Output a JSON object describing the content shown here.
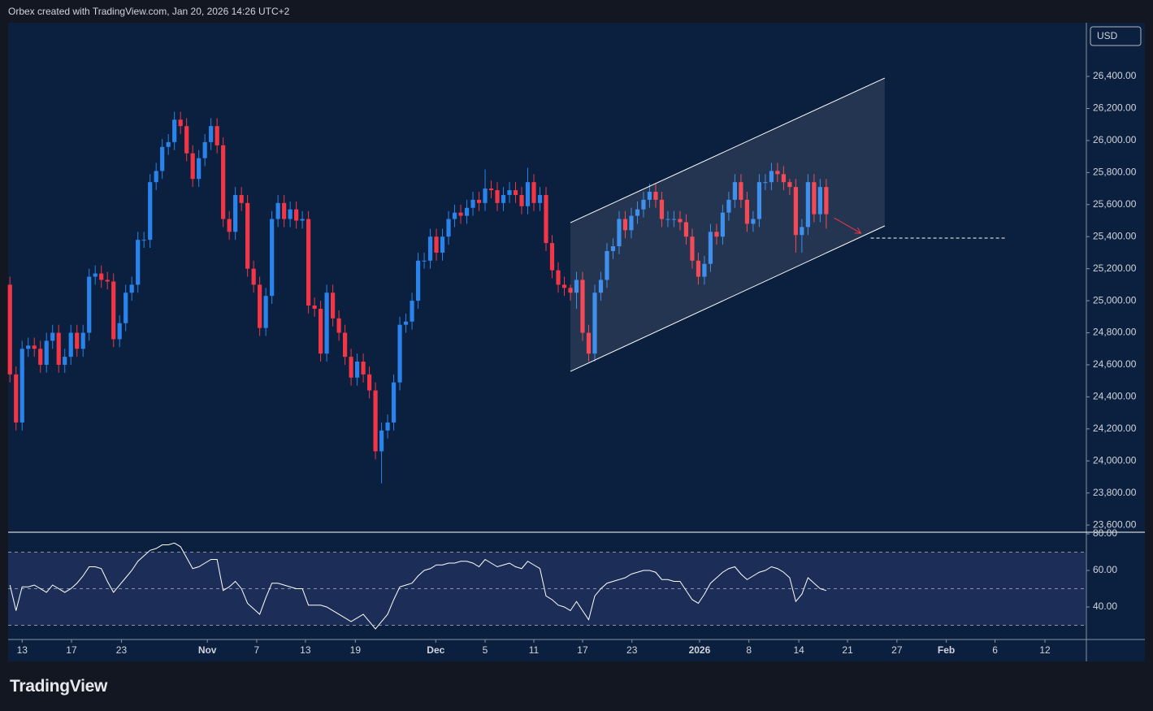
{
  "header": "Orbex created with TradingView.com, Jan 20, 2026 14:26 UTC+2",
  "logo": "TradingView",
  "currency": "USD",
  "chart_data": [
    {
      "type": "candlestick",
      "up_color": "#2a83ea",
      "down_color": "#f23645",
      "xlim": [
        -0.3,
        176.7
      ],
      "ylim": [
        23555,
        26735
      ],
      "xticks": [
        {
          "value": 2,
          "label": "13"
        },
        {
          "value": 10.1,
          "label": "17"
        },
        {
          "value": 18.3,
          "label": "23"
        },
        {
          "value": 32.4,
          "label": "Nov"
        },
        {
          "value": 40.5,
          "label": "7"
        },
        {
          "value": 48.5,
          "label": "13"
        },
        {
          "value": 56.7,
          "label": "19"
        },
        {
          "value": 69.9,
          "label": "Dec"
        },
        {
          "value": 78,
          "label": "5"
        },
        {
          "value": 86,
          "label": "11"
        },
        {
          "value": 94,
          "label": "17"
        },
        {
          "value": 102.1,
          "label": "23"
        },
        {
          "value": 113.2,
          "label": "2026"
        },
        {
          "value": 121.3,
          "label": "8"
        },
        {
          "value": 129.5,
          "label": "14"
        },
        {
          "value": 137.5,
          "label": "21"
        },
        {
          "value": 145.6,
          "label": "27"
        },
        {
          "value": 153.7,
          "label": "Feb"
        },
        {
          "value": 161.7,
          "label": "6"
        },
        {
          "value": 169.9,
          "label": "12"
        }
      ],
      "yticks": [
        {
          "value": 23600,
          "label": "23,600.00"
        },
        {
          "value": 23800,
          "label": "23,800.00"
        },
        {
          "value": 24000,
          "label": "24,000.00"
        },
        {
          "value": 24200,
          "label": "24,200.00"
        },
        {
          "value": 24400,
          "label": "24,400.00"
        },
        {
          "value": 24600,
          "label": "24,600.00"
        },
        {
          "value": 24800,
          "label": "24,800.00"
        },
        {
          "value": 25000,
          "label": "25,000.00"
        },
        {
          "value": 25200,
          "label": "25,200.00"
        },
        {
          "value": 25400,
          "label": "25,400.00"
        },
        {
          "value": 25600,
          "label": "25,600.00"
        },
        {
          "value": 25800,
          "label": "25,800.00"
        },
        {
          "value": 26000,
          "label": "26,000.00"
        },
        {
          "value": 26200,
          "label": "26,200.00"
        },
        {
          "value": 26400,
          "label": "26,400.00"
        }
      ],
      "open": [
        25100,
        24540,
        24240,
        24700,
        24720,
        24700,
        24600,
        24750,
        24800,
        24600,
        24650,
        24800,
        24700,
        24800,
        25150,
        25170,
        25130,
        25120,
        24760,
        24860,
        25050,
        25100,
        25380,
        25380,
        25740,
        25810,
        25960,
        25990,
        26130,
        26090,
        25920,
        25760,
        25890,
        25990,
        26090,
        25970,
        25510,
        25430,
        25660,
        25610,
        25200,
        25100,
        24830,
        25030,
        25510,
        25610,
        25510,
        25570,
        25500,
        25510,
        24970,
        24950,
        24670,
        25050,
        24890,
        24800,
        24650,
        24520,
        24620,
        24540,
        24440,
        24060,
        24190,
        24240,
        24490,
        24850,
        24870,
        25000,
        25250,
        25250,
        25400,
        25300,
        25400,
        25510,
        25550,
        25530,
        25580,
        25630,
        25610,
        25700,
        25690,
        25610,
        25660,
        25690,
        25660,
        25590,
        25740,
        25610,
        25660,
        25360,
        25190,
        25100,
        25080,
        25050,
        25130,
        24800,
        24670,
        25050,
        25130,
        25310,
        25340,
        25510,
        25440,
        25530,
        25570,
        25630,
        25680,
        25630,
        25510,
        25510,
        25510,
        25490,
        25400,
        25250,
        25150,
        25230,
        25430,
        25400,
        25550,
        25630,
        25740,
        25630,
        25480,
        25510,
        25740,
        25740,
        25810,
        25790,
        25740,
        25710,
        25410,
        25460,
        25740,
        25540,
        25710
      ],
      "high": [
        25150,
        24590,
        24750,
        24770,
        24770,
        24750,
        24800,
        24850,
        24850,
        24700,
        24850,
        24850,
        24850,
        25200,
        25220,
        25220,
        25180,
        25170,
        24910,
        25100,
        25150,
        25430,
        25430,
        25790,
        25860,
        26010,
        26040,
        26180,
        26180,
        26140,
        25970,
        25940,
        26040,
        26140,
        26140,
        26020,
        25560,
        25710,
        25710,
        25660,
        25250,
        25150,
        25080,
        25560,
        25660,
        25660,
        25620,
        25620,
        25560,
        25560,
        25020,
        25000,
        25100,
        25100,
        24940,
        24850,
        24700,
        24670,
        24670,
        24590,
        24490,
        24240,
        24290,
        24540,
        24900,
        24920,
        25050,
        25300,
        25300,
        25450,
        25450,
        25450,
        25560,
        25600,
        25600,
        25630,
        25680,
        25680,
        25820,
        25750,
        25740,
        25710,
        25740,
        25740,
        25710,
        25830,
        25790,
        25710,
        25710,
        25410,
        25240,
        25150,
        25100,
        25180,
        25180,
        24850,
        25100,
        25180,
        25360,
        25390,
        25560,
        25560,
        25580,
        25620,
        25680,
        25730,
        25730,
        25680,
        25560,
        25560,
        25560,
        25540,
        25450,
        25300,
        25280,
        25480,
        25480,
        25600,
        25680,
        25790,
        25790,
        25680,
        25560,
        25790,
        25790,
        25860,
        25860,
        25840,
        25760,
        25760,
        25510,
        25790,
        25790,
        25760,
        25760
      ],
      "low": [
        24490,
        24190,
        24190,
        24650,
        24650,
        24550,
        24550,
        24700,
        24550,
        24550,
        24600,
        24650,
        24650,
        24750,
        25100,
        25080,
        25070,
        24710,
        24710,
        24810,
        25000,
        25050,
        25330,
        25330,
        25690,
        25760,
        25910,
        25940,
        26040,
        25870,
        25710,
        25710,
        25840,
        25940,
        25920,
        25460,
        25380,
        25380,
        25560,
        25150,
        25050,
        24780,
        24780,
        24980,
        25460,
        25460,
        25460,
        25450,
        25450,
        24920,
        24900,
        24620,
        24620,
        24840,
        24750,
        24600,
        24470,
        24470,
        24490,
        24390,
        24010,
        23860,
        24140,
        24190,
        24440,
        24800,
        24820,
        24950,
        25200,
        25200,
        25250,
        25250,
        25350,
        25460,
        25480,
        25480,
        25530,
        25560,
        25560,
        25640,
        25560,
        25560,
        25610,
        25610,
        25540,
        25540,
        25560,
        25560,
        25310,
        25140,
        25050,
        25030,
        25000,
        24950,
        24750,
        24620,
        24620,
        25000,
        25080,
        25260,
        25290,
        25390,
        25390,
        25480,
        25520,
        25580,
        25580,
        25460,
        25460,
        25460,
        25440,
        25350,
        25200,
        25100,
        25100,
        25180,
        25350,
        25350,
        25500,
        25580,
        25580,
        25430,
        25430,
        25460,
        25690,
        25690,
        25740,
        25690,
        25660,
        25300,
        25300,
        25410,
        25490,
        25490,
        25450
      ],
      "close": [
        24540,
        24240,
        24700,
        24720,
        24700,
        24600,
        24750,
        24800,
        24600,
        24650,
        24800,
        24700,
        24800,
        25150,
        25170,
        25130,
        25120,
        24760,
        24860,
        25050,
        25100,
        25380,
        25380,
        25740,
        25810,
        25960,
        25990,
        26130,
        26090,
        25920,
        25760,
        25890,
        25990,
        26090,
        25970,
        25510,
        25430,
        25660,
        25610,
        25200,
        25100,
        24830,
        25030,
        25510,
        25610,
        25510,
        25570,
        25500,
        25510,
        24970,
        24950,
        24670,
        25050,
        24890,
        24800,
        24650,
        24520,
        24620,
        24540,
        24440,
        24060,
        24190,
        24240,
        24490,
        24850,
        24870,
        25000,
        25250,
        25250,
        25400,
        25300,
        25400,
        25510,
        25550,
        25530,
        25580,
        25630,
        25610,
        25700,
        25690,
        25610,
        25660,
        25690,
        25660,
        25590,
        25740,
        25610,
        25660,
        25360,
        25190,
        25100,
        25080,
        25050,
        25130,
        24800,
        24670,
        25050,
        25130,
        25310,
        25340,
        25510,
        25440,
        25530,
        25570,
        25630,
        25680,
        25630,
        25510,
        25510,
        25510,
        25490,
        25400,
        25250,
        25150,
        25230,
        25430,
        25400,
        25550,
        25630,
        25740,
        25630,
        25480,
        25510,
        25740,
        25740,
        25810,
        25790,
        25740,
        25710,
        25410,
        25460,
        25740,
        25540,
        25710,
        25540
      ],
      "channel": {
        "x": [
          92,
          143.6
        ],
        "upper": [
          25487,
          26390
        ],
        "lower": [
          24559,
          25467
        ],
        "color": "#ffffff"
      },
      "level_line": {
        "x": [
          141.3,
          163.7
        ],
        "value": 25391,
        "color": "#ffffff"
      },
      "arrow": {
        "x": [
          135.3,
          139.7
        ],
        "y": [
          25517,
          25421
        ],
        "color": "#f23645"
      }
    },
    {
      "type": "line",
      "name": "RSI",
      "color": "#ffffff",
      "xlim": [
        -0.3,
        176.7
      ],
      "ylim": [
        22.2,
        80.9
      ],
      "yticks": [
        {
          "value": 40,
          "label": "40.00"
        },
        {
          "value": 60,
          "label": "60.00"
        },
        {
          "value": 80,
          "label": "80.00"
        }
      ],
      "levels": [
        30,
        50,
        70
      ],
      "values": [
        52,
        38,
        51,
        51,
        52,
        50,
        48,
        52,
        50,
        48,
        50,
        53,
        57,
        62,
        62,
        61,
        54,
        48,
        52,
        56,
        60,
        65,
        68,
        71,
        72,
        74,
        74,
        75,
        73,
        67,
        61,
        62,
        64,
        66,
        66,
        49,
        51,
        54,
        50,
        42,
        39,
        36,
        45,
        53,
        53,
        52,
        51,
        50,
        50,
        41,
        41,
        41,
        40,
        38,
        36,
        34,
        32,
        34,
        36,
        32,
        28,
        32,
        36,
        44,
        51,
        52,
        53,
        57,
        60,
        61,
        63,
        63,
        64,
        64,
        65,
        65,
        64,
        62,
        66,
        64,
        62,
        63,
        64,
        62,
        61,
        65,
        63,
        61,
        46,
        44,
        41,
        40,
        38,
        43,
        38,
        33,
        46,
        50,
        53,
        54,
        55,
        56,
        58,
        59,
        60,
        60,
        59,
        55,
        55,
        54,
        54,
        49,
        44,
        42,
        47,
        53,
        56,
        59,
        61,
        62,
        58,
        55,
        57,
        59,
        60,
        62,
        61,
        59,
        56,
        43,
        47,
        56,
        53,
        50,
        49
      ]
    }
  ]
}
